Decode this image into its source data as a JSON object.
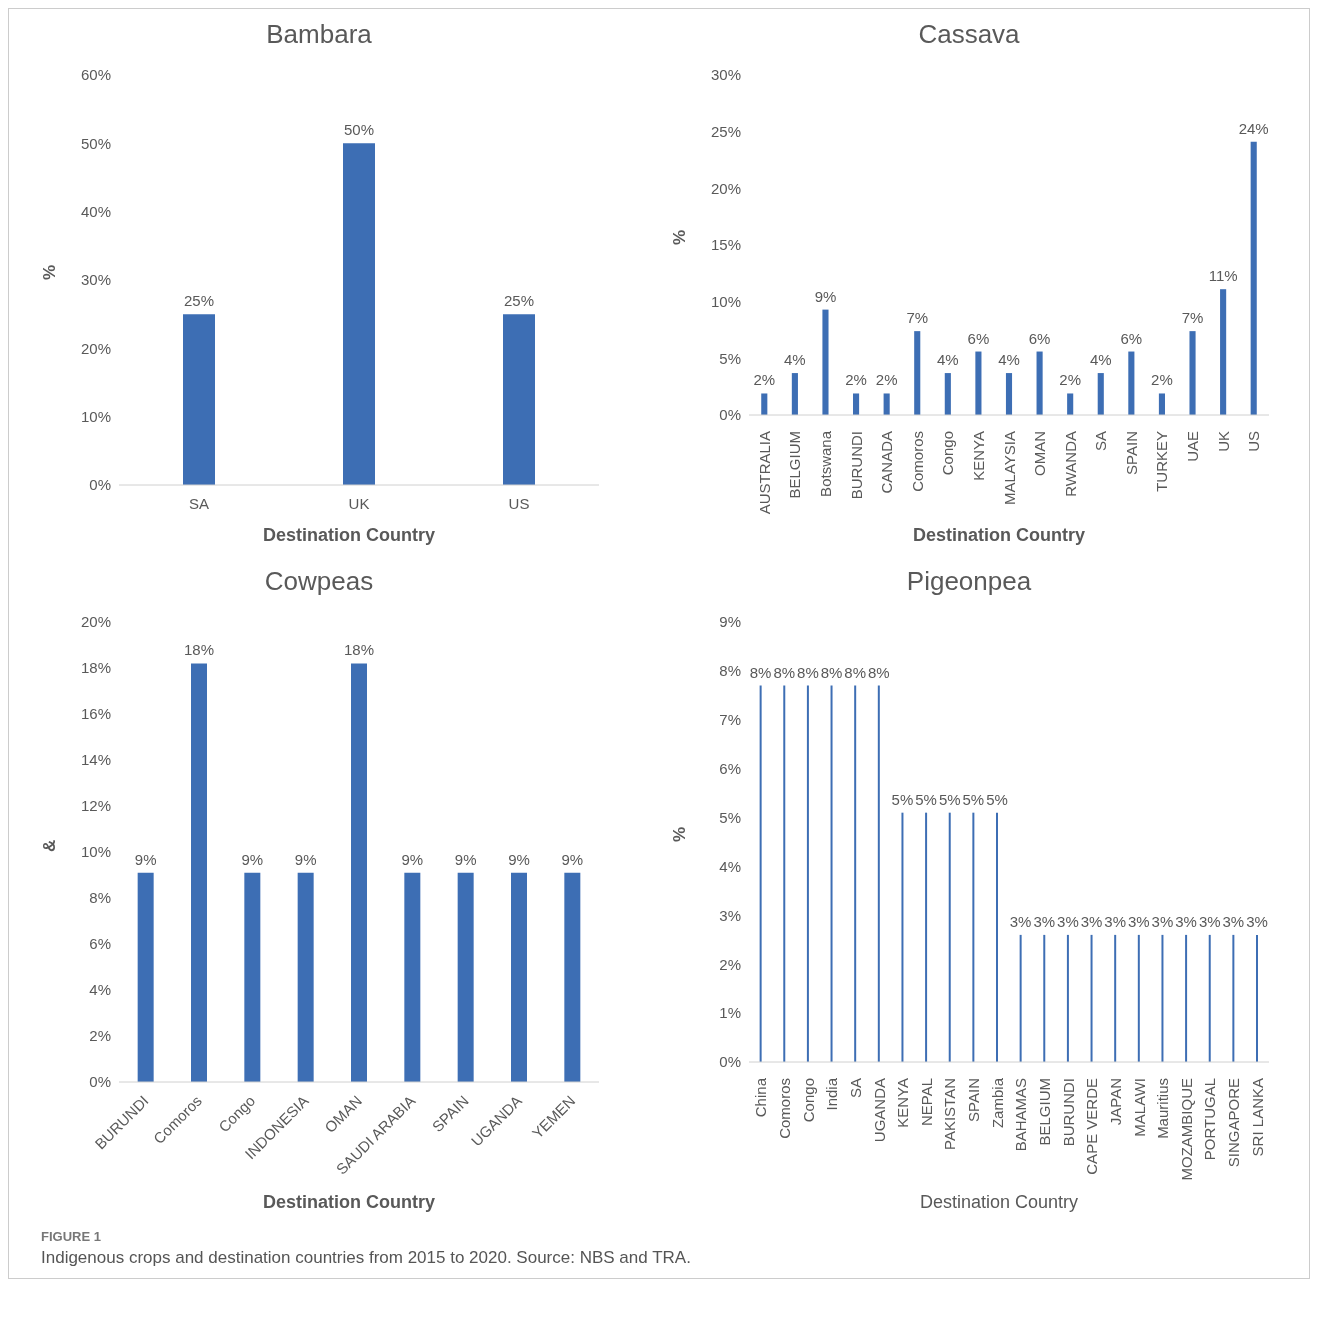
{
  "chart_data": [
    {
      "type": "bar",
      "title": "Bambara",
      "xlabel": "Destination Country",
      "ylabel": "%",
      "categories": [
        "SA",
        "UK",
        "US"
      ],
      "series": [
        {
          "color": "#3d6eb4",
          "values": [
            25,
            50,
            25
          ],
          "value_labels": [
            "25%",
            "50%",
            "25%"
          ]
        }
      ],
      "ylim": [
        0,
        60
      ],
      "yticks": [
        {
          "value": 0,
          "label": "0%"
        },
        {
          "value": 10,
          "label": "10%"
        },
        {
          "value": 20,
          "label": "20%"
        },
        {
          "value": 30,
          "label": "30%"
        },
        {
          "value": 40,
          "label": "40%"
        },
        {
          "value": 50,
          "label": "50%"
        },
        {
          "value": 60,
          "label": "60%"
        }
      ],
      "grid": false,
      "legend": false,
      "annotations": [
        "FIGURE 1",
        "Indigenous crops and destination countries from 2015 to 2020. Source: NBS and TRA."
      ]
    },
    {
      "type": "bar",
      "title": "Cassava",
      "xlabel": "Destination Country",
      "ylabel": "%",
      "categories": [
        "AUSTRALIA",
        "BELGIUM",
        "Botswana",
        "BURUNDI",
        "CANADA",
        "Comoros",
        "Congo",
        "KENYA",
        "MALAYSIA",
        "OMAN",
        "RWANDA",
        "SA",
        "SPAIN",
        "TURKEY",
        "UAE",
        "UK",
        "US"
      ],
      "series": [
        {
          "color": "#3d6eb4",
          "values": [
            1.9,
            3.7,
            9.3,
            1.9,
            1.9,
            7.4,
            3.7,
            5.6,
            3.7,
            5.6,
            1.9,
            3.7,
            5.6,
            1.9,
            7.4,
            11.1,
            24.1
          ],
          "value_labels": [
            "2%",
            "4%",
            "9%",
            "2%",
            "2%",
            "7%",
            "4%",
            "6%",
            "4%",
            "6%",
            "2%",
            "4%",
            "6%",
            "2%",
            "7%",
            "11%",
            "24%"
          ]
        }
      ],
      "ylim": [
        0,
        30
      ],
      "yticks": [
        {
          "value": 0,
          "label": "0%"
        },
        {
          "value": 5,
          "label": "5%"
        },
        {
          "value": 10,
          "label": "10%"
        },
        {
          "value": 15,
          "label": "15%"
        },
        {
          "value": 20,
          "label": "20%"
        },
        {
          "value": 25,
          "label": "25%"
        },
        {
          "value": 30,
          "label": "30%"
        }
      ],
      "grid": false,
      "legend": false
    },
    {
      "type": "bar",
      "title": "Cowpeas",
      "xlabel": "Destination Country",
      "ylabel": "&",
      "categories": [
        "BURUNDI",
        "Comoros",
        "Congo",
        "INDONESIA",
        "OMAN",
        "SAUDI ARABIA",
        "SPAIN",
        "UGANDA",
        "YEMEN"
      ],
      "series": [
        {
          "color": "#3d6eb4",
          "values": [
            9.1,
            18.2,
            9.1,
            9.1,
            18.2,
            9.1,
            9.1,
            9.1,
            9.1
          ],
          "value_labels": [
            "9%",
            "18%",
            "9%",
            "9%",
            "18%",
            "9%",
            "9%",
            "9%",
            "9%"
          ]
        }
      ],
      "ylim": [
        0,
        20
      ],
      "yticks": [
        {
          "value": 0,
          "label": "0%"
        },
        {
          "value": 2,
          "label": "2%"
        },
        {
          "value": 4,
          "label": "4%"
        },
        {
          "value": 6,
          "label": "6%"
        },
        {
          "value": 8,
          "label": "8%"
        },
        {
          "value": 10,
          "label": "10%"
        },
        {
          "value": 12,
          "label": "12%"
        },
        {
          "value": 14,
          "label": "14%"
        },
        {
          "value": 16,
          "label": "16%"
        },
        {
          "value": 18,
          "label": "18%"
        },
        {
          "value": 20,
          "label": "20%"
        }
      ],
      "grid": false,
      "legend": false
    },
    {
      "type": "bar",
      "title": "Pigeonpea",
      "xlabel": "Destination Country",
      "ylabel": "%",
      "categories": [
        "China",
        "Comoros",
        "Congo",
        "India",
        "SA",
        "UGANDA",
        "KENYA",
        "NEPAL",
        "PAKISTAN",
        "SPAIN",
        "Zambia",
        "BAHAMAS",
        "BELGIUM",
        "BURUNDI",
        "CAPE VERDE",
        "JAPAN",
        "MALAWI",
        "Mauritius",
        "MOZAMBIQUE",
        "PORTUGAL",
        "SINGAPORE",
        "SRI LANKA"
      ],
      "series": [
        {
          "color": "#3d6eb4",
          "values": [
            7.7,
            7.7,
            7.7,
            7.7,
            7.7,
            7.7,
            5.1,
            5.1,
            5.1,
            5.1,
            5.1,
            2.6,
            2.6,
            2.6,
            2.6,
            2.6,
            2.6,
            2.6,
            2.6,
            2.6,
            2.6,
            2.6
          ],
          "value_labels": [
            "8%",
            "8%",
            "8%",
            "8%",
            "8%",
            "8%",
            "5%",
            "5%",
            "5%",
            "5%",
            "5%",
            "3%",
            "3%",
            "3%",
            "3%",
            "3%",
            "3%",
            "3%",
            "3%",
            "3%",
            "3%",
            "3%"
          ]
        }
      ],
      "ylim": [
        0,
        9
      ],
      "yticks": [
        {
          "value": 0,
          "label": "0%"
        },
        {
          "value": 1,
          "label": "1%"
        },
        {
          "value": 2,
          "label": "2%"
        },
        {
          "value": 3,
          "label": "3%"
        },
        {
          "value": 4,
          "label": "4%"
        },
        {
          "value": 5,
          "label": "5%"
        },
        {
          "value": 6,
          "label": "6%"
        },
        {
          "value": 7,
          "label": "7%"
        },
        {
          "value": 8,
          "label": "8%"
        },
        {
          "value": 9,
          "label": "9%"
        }
      ],
      "grid": false,
      "legend": false
    }
  ]
}
